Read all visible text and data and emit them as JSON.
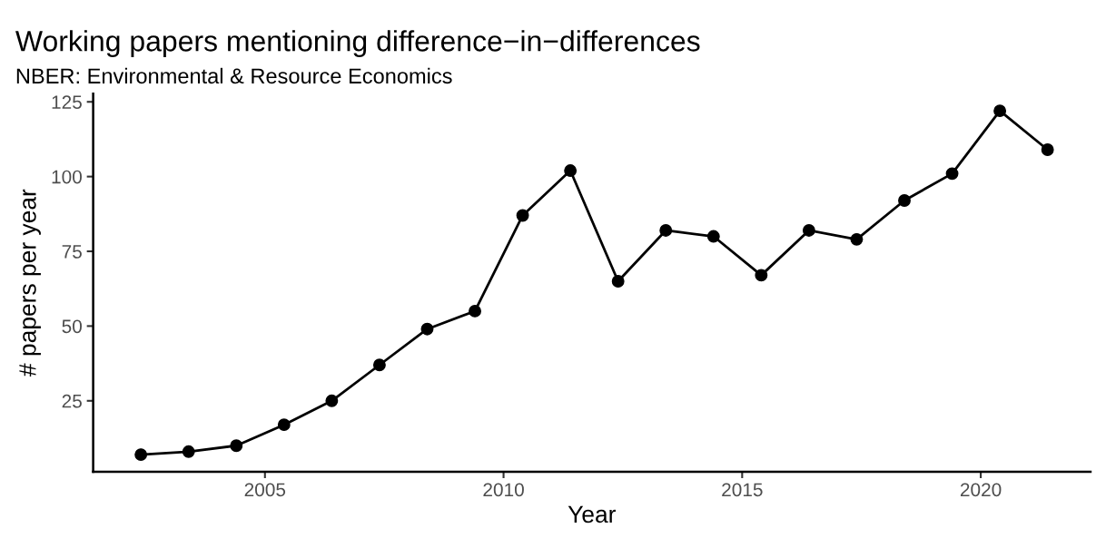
{
  "chart_data": {
    "type": "line",
    "title": "Working papers mentioning difference−in−differences",
    "subtitle": "NBER: Environmental & Resource Economics",
    "xlabel": "Year",
    "ylabel": "# papers per year",
    "x": [
      2002.4,
      2003.4,
      2004.4,
      2005.4,
      2006.4,
      2007.4,
      2008.4,
      2009.4,
      2010.4,
      2011.4,
      2012.4,
      2013.4,
      2014.4,
      2015.4,
      2016.4,
      2017.4,
      2018.4,
      2019.4,
      2020.4,
      2021.4
    ],
    "series": [
      {
        "color": "#000000",
        "values": [
          7,
          8,
          10,
          17,
          25,
          37,
          49,
          55,
          87,
          102,
          65,
          82,
          80,
          67,
          82,
          79,
          92,
          101,
          122,
          109
        ]
      }
    ],
    "xlim": [
      2001.4,
      2022.3
    ],
    "ylim": [
      1.25,
      127.75
    ],
    "xticks": [
      2005,
      2010,
      2015,
      2020
    ],
    "yticks": [
      25,
      50,
      75,
      100,
      125
    ],
    "grid": false,
    "legend": false,
    "marker": "circle",
    "line_style": "solid"
  }
}
